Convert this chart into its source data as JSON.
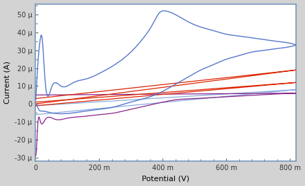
{
  "xlabel": "Potential (V)",
  "ylabel": "Current (A)",
  "xlim": [
    0,
    0.82
  ],
  "ylim": [
    -3.2e-05,
    5.6e-05
  ],
  "yticks": [
    -3e-05,
    -2e-05,
    -1e-05,
    0,
    1e-05,
    2e-05,
    3e-05,
    4e-05,
    5e-05
  ],
  "ytick_labels": [
    "-30 μ",
    "-20 μ",
    "-10 μ",
    "0",
    "10 μ",
    "20 μ",
    "30 μ",
    "40 μ",
    "50 μ"
  ],
  "xticks": [
    0,
    0.2,
    0.4,
    0.6,
    0.8
  ],
  "xtick_labels": [
    "0",
    "200 m",
    "400 m",
    "600 m",
    "800 m"
  ],
  "bg_color": "#d3d3d3",
  "plot_bg": "#ffffff",
  "spine_color": "#7799bb",
  "color_blue": "#5577cc",
  "color_red": "#dd2200",
  "color_purple": "#882288",
  "color_lightblue": "#88aadd"
}
